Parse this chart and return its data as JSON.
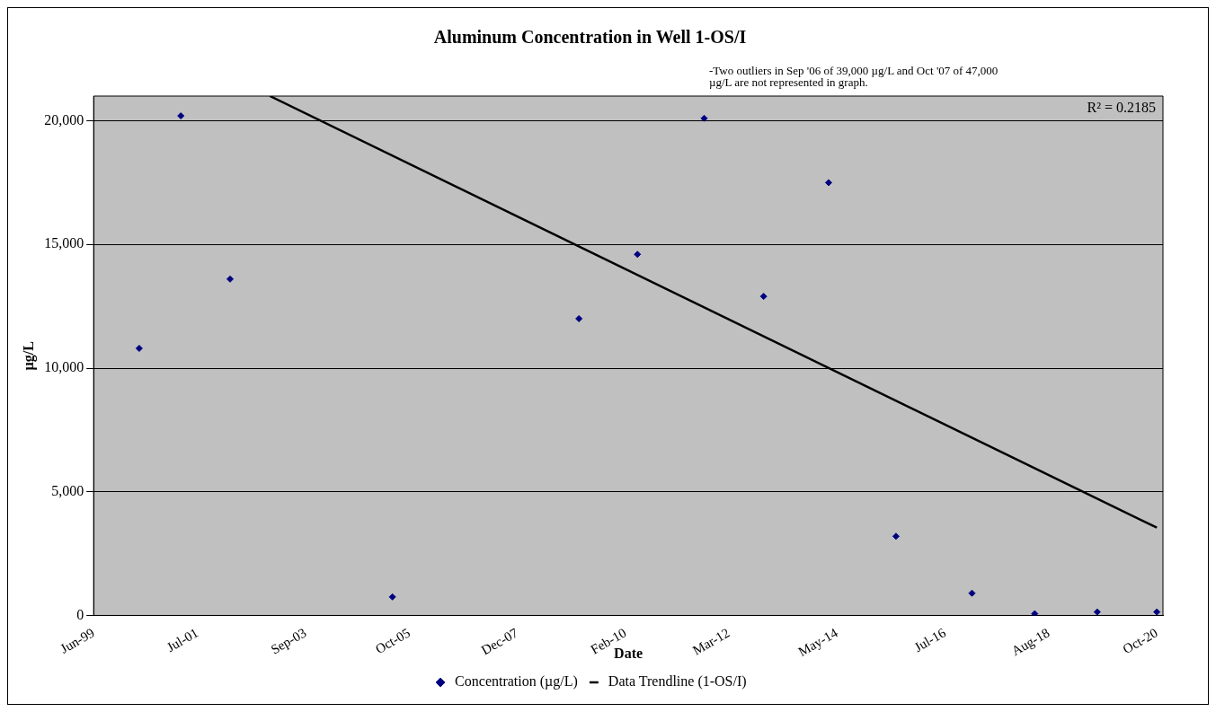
{
  "chart_data": {
    "type": "scatter",
    "title": "Aluminum Concentration in Well 1-OS/I",
    "xlabel": "Date",
    "ylabel": "µg/L",
    "annotations": [
      "-Two outliers in Sep '06 of 39,000 µg/L and Oct '07 of 47,000 µg/L are not represented in graph.",
      "R² = 0.2185"
    ],
    "series": [
      {
        "name": "Concentration (µg/L)",
        "color": "#000080",
        "marker": "diamond",
        "x": [
          "2000-04-30",
          "2001-03-01",
          "2002-02-25",
          "2005-05-30",
          "2009-02-25",
          "2010-04-30",
          "2011-09-01",
          "2012-11-10",
          "2014-03-01",
          "2015-07-08",
          "2017-01-15",
          "2018-04-20",
          "2019-07-22",
          "2020-10-01"
        ],
        "values": [
          10800,
          20200,
          13600,
          750,
          12000,
          14600,
          20100,
          12900,
          17500,
          3200,
          900,
          70,
          140,
          140
        ]
      },
      {
        "name": "Data Trendline (1-OS/I)",
        "type": "line",
        "color": "#000000",
        "marker": "none",
        "x": [
          "2002-12-14",
          "2020-10-01"
        ],
        "values": [
          21000,
          3550
        ]
      }
    ],
    "xlim": [
      "1999-06-01",
      "2020-11-15"
    ],
    "xticks": [
      {
        "value": "1999-06-01",
        "label": "Jun-99"
      },
      {
        "value": "2001-07-01",
        "label": "Jul-01"
      },
      {
        "value": "2003-09-01",
        "label": "Sep-03"
      },
      {
        "value": "2005-10-01",
        "label": "Oct-05"
      },
      {
        "value": "2007-12-01",
        "label": "Dec-07"
      },
      {
        "value": "2010-02-01",
        "label": "Feb-10"
      },
      {
        "value": "2012-03-01",
        "label": "Mar-12"
      },
      {
        "value": "2014-05-01",
        "label": "May-14"
      },
      {
        "value": "2016-07-01",
        "label": "Jul-16"
      },
      {
        "value": "2018-08-01",
        "label": "Aug-18"
      },
      {
        "value": "2020-10-01",
        "label": "Oct-20"
      }
    ],
    "ylim": [
      0,
      21000
    ],
    "yticks": [
      0,
      {
        "value": 5000,
        "label": "5,000"
      },
      {
        "value": 10000,
        "label": "10,000"
      },
      {
        "value": 15000,
        "label": "15,000"
      },
      {
        "value": 20000,
        "label": "20,000"
      }
    ],
    "grid": "y",
    "legend": "bottom"
  }
}
